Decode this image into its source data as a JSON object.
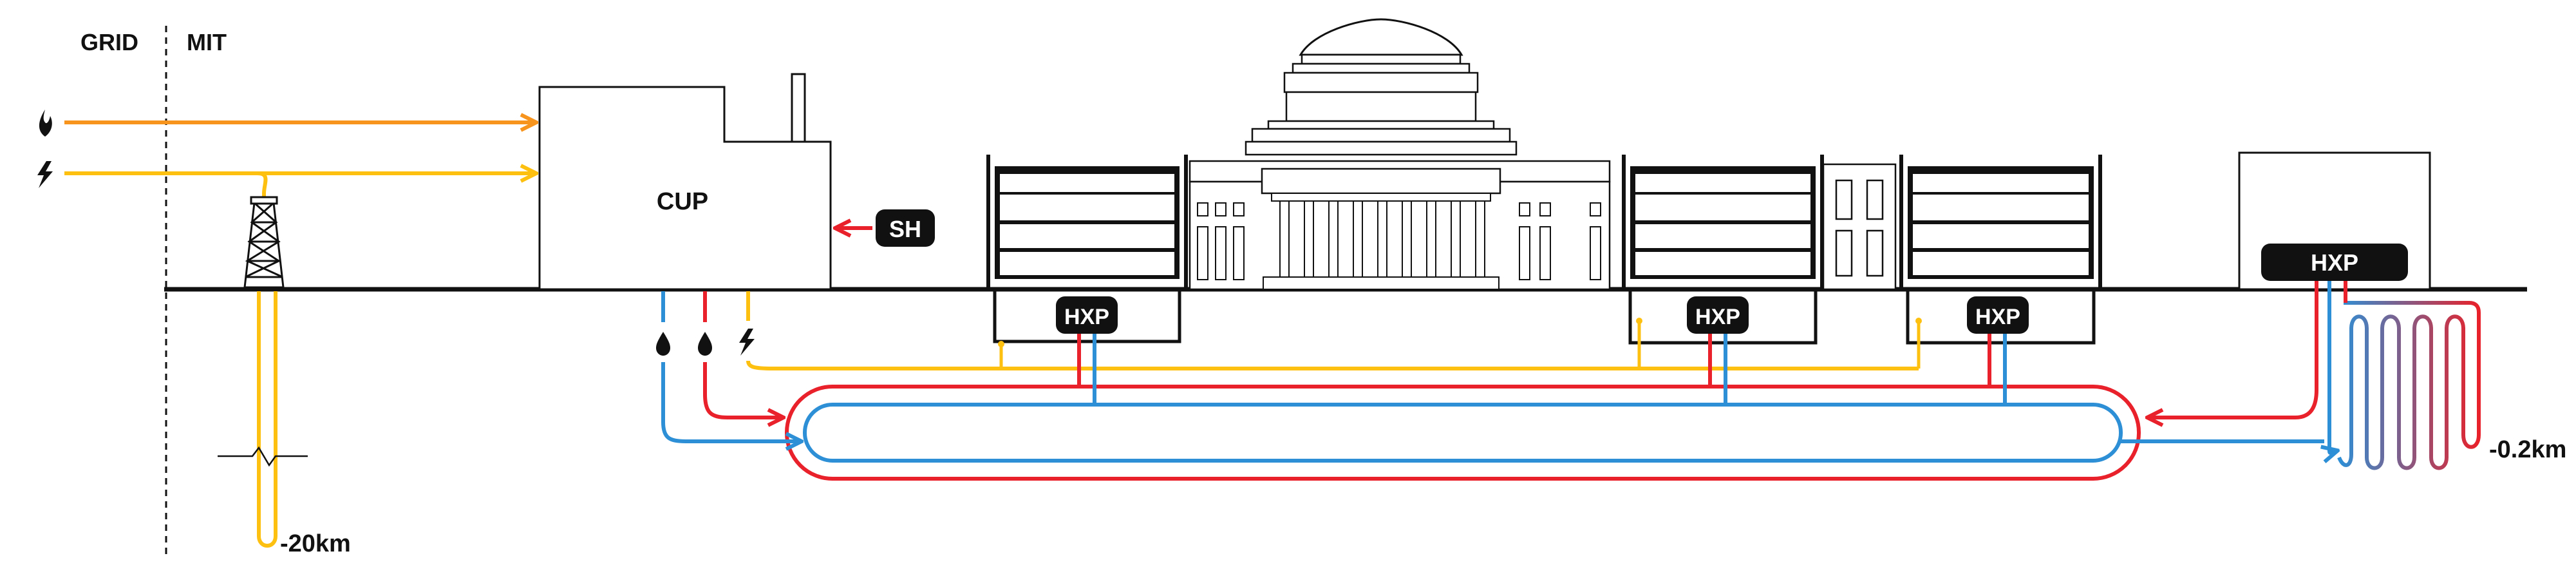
{
  "labels": {
    "grid": "GRID",
    "mit": "MIT",
    "cup": "CUP",
    "sh": "SH",
    "hxp": "HXP",
    "depth_deep": "-20km",
    "depth_shallow": "-0.2km"
  },
  "colors": {
    "gas": "#F7941D",
    "electric": "#FDC010",
    "supply_hot": "#E8212A",
    "return_cold": "#2D8FD6",
    "line": "#111111",
    "badge": "#111111",
    "badge_text": "#FFFFFF"
  },
  "icons": [
    "flame-icon",
    "lightning-icon",
    "drill-tower-icon",
    "water-drop-icon"
  ]
}
